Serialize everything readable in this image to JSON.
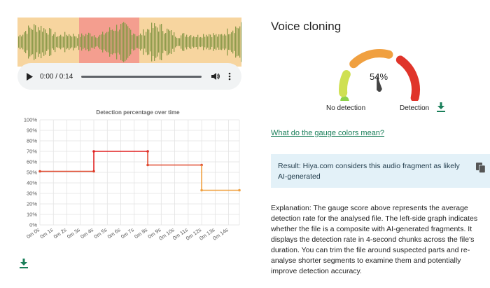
{
  "player": {
    "time": "0:00 / 0:14"
  },
  "detection_chart": {
    "title": "Detection percentage over time",
    "y_ticks": [
      "0%",
      "10%",
      "20%",
      "30%",
      "40%",
      "50%",
      "60%",
      "70%",
      "80%",
      "90%",
      "100%"
    ],
    "x_ticks": [
      "0m 0s",
      "0m 1s",
      "0m 2s",
      "0m 3s",
      "0m 4s",
      "0m 5s",
      "0m 6s",
      "0m 7s",
      "0m 8s",
      "0m 9s",
      "0m 10s",
      "0m 11s",
      "0m 12s",
      "0m 13s",
      "0m 14s"
    ]
  },
  "chart_data": {
    "type": "line",
    "title": "Detection percentage over time",
    "x_unit": "seconds",
    "ylim": [
      0,
      100
    ],
    "xlim": [
      0,
      14.8
    ],
    "grid": true,
    "segments": [
      {
        "x": [
          0,
          4
        ],
        "y": [
          51,
          51
        ],
        "color": "#e04a30"
      },
      {
        "x": [
          4,
          8
        ],
        "y": [
          70,
          70
        ],
        "color": "#e02020"
      },
      {
        "x": [
          8,
          12
        ],
        "y": [
          57,
          57
        ],
        "color": "#e04a30"
      },
      {
        "x": [
          12,
          14.8
        ],
        "y": [
          33,
          33
        ],
        "color": "#f0a040"
      }
    ]
  },
  "voice": {
    "title": "Voice cloning",
    "gauge_value": "54%",
    "gauge_fraction": 0.54,
    "label_left": "No detection",
    "label_right": "Detection"
  },
  "gauge_colors_link": "What do the gauge colors mean?",
  "result_text": "Result: Hiya.com considers this audio fragment as likely AI-generated",
  "explanation": "Explanation: The gauge score above represents the average detection rate for the analysed file. The left-side graph indicates whether the file is a composite with AI-generated fragments. It displays the detection rate in 4-second chunks across the file's duration. You can trim the file around suspected parts and re-analyse shorter segments to examine them and potentially improve detection accuracy.",
  "colors": {
    "wave_bg": "#f7d59f",
    "wave_highlight": "#f49e8f",
    "wave": "#8c9a4a",
    "accent_green": "#1a7f5a",
    "result_bg": "#e3f1f8"
  }
}
